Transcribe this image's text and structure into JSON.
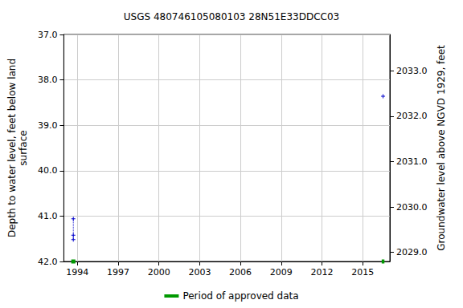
{
  "chart_data": {
    "type": "scatter",
    "title": "USGS 480746105080103 28N51E33DDCC03",
    "y_label": "Depth to water level, feet below land\nsurface",
    "y2_label": "Groundwater level above NGVD 1929, feet",
    "grid": true,
    "legend": "bottom",
    "xlim": [
      1993.0,
      2017.0
    ],
    "xticks": [
      1994,
      1997,
      2000,
      2003,
      2006,
      2009,
      2012,
      2015
    ],
    "ylim": [
      37.0,
      42.0
    ],
    "yticks": [
      {
        "value": 37,
        "label": "37.0"
      },
      {
        "value": 38,
        "label": "38.0"
      },
      {
        "value": 39,
        "label": "39.0"
      },
      {
        "value": 40,
        "label": "40.0"
      },
      {
        "value": 41,
        "label": "41.0"
      },
      {
        "value": 42,
        "label": "42.0"
      }
    ],
    "y2lim": [
      2028.8,
      2033.8
    ],
    "y2ticks": [
      {
        "value": 2029,
        "label": "2029.0"
      },
      {
        "value": 2030,
        "label": "2030.0"
      },
      {
        "value": 2031,
        "label": "2031.0"
      },
      {
        "value": 2032,
        "label": "2032.0"
      },
      {
        "value": 2033,
        "label": "2033.0"
      }
    ],
    "series": [
      {
        "color": "#0000cc",
        "marker": "plus",
        "line_style": "dotted",
        "x": [
          1993.7,
          1993.7,
          1993.7,
          2016.5,
          2016.5
        ],
        "values": [
          41.06,
          41.42,
          41.52,
          null,
          38.36
        ]
      },
      {
        "name": "Period of approved data",
        "color": "#009900",
        "periods": [
          [
            1993.55,
            1993.85
          ],
          [
            2016.4,
            2016.6
          ]
        ]
      }
    ]
  }
}
